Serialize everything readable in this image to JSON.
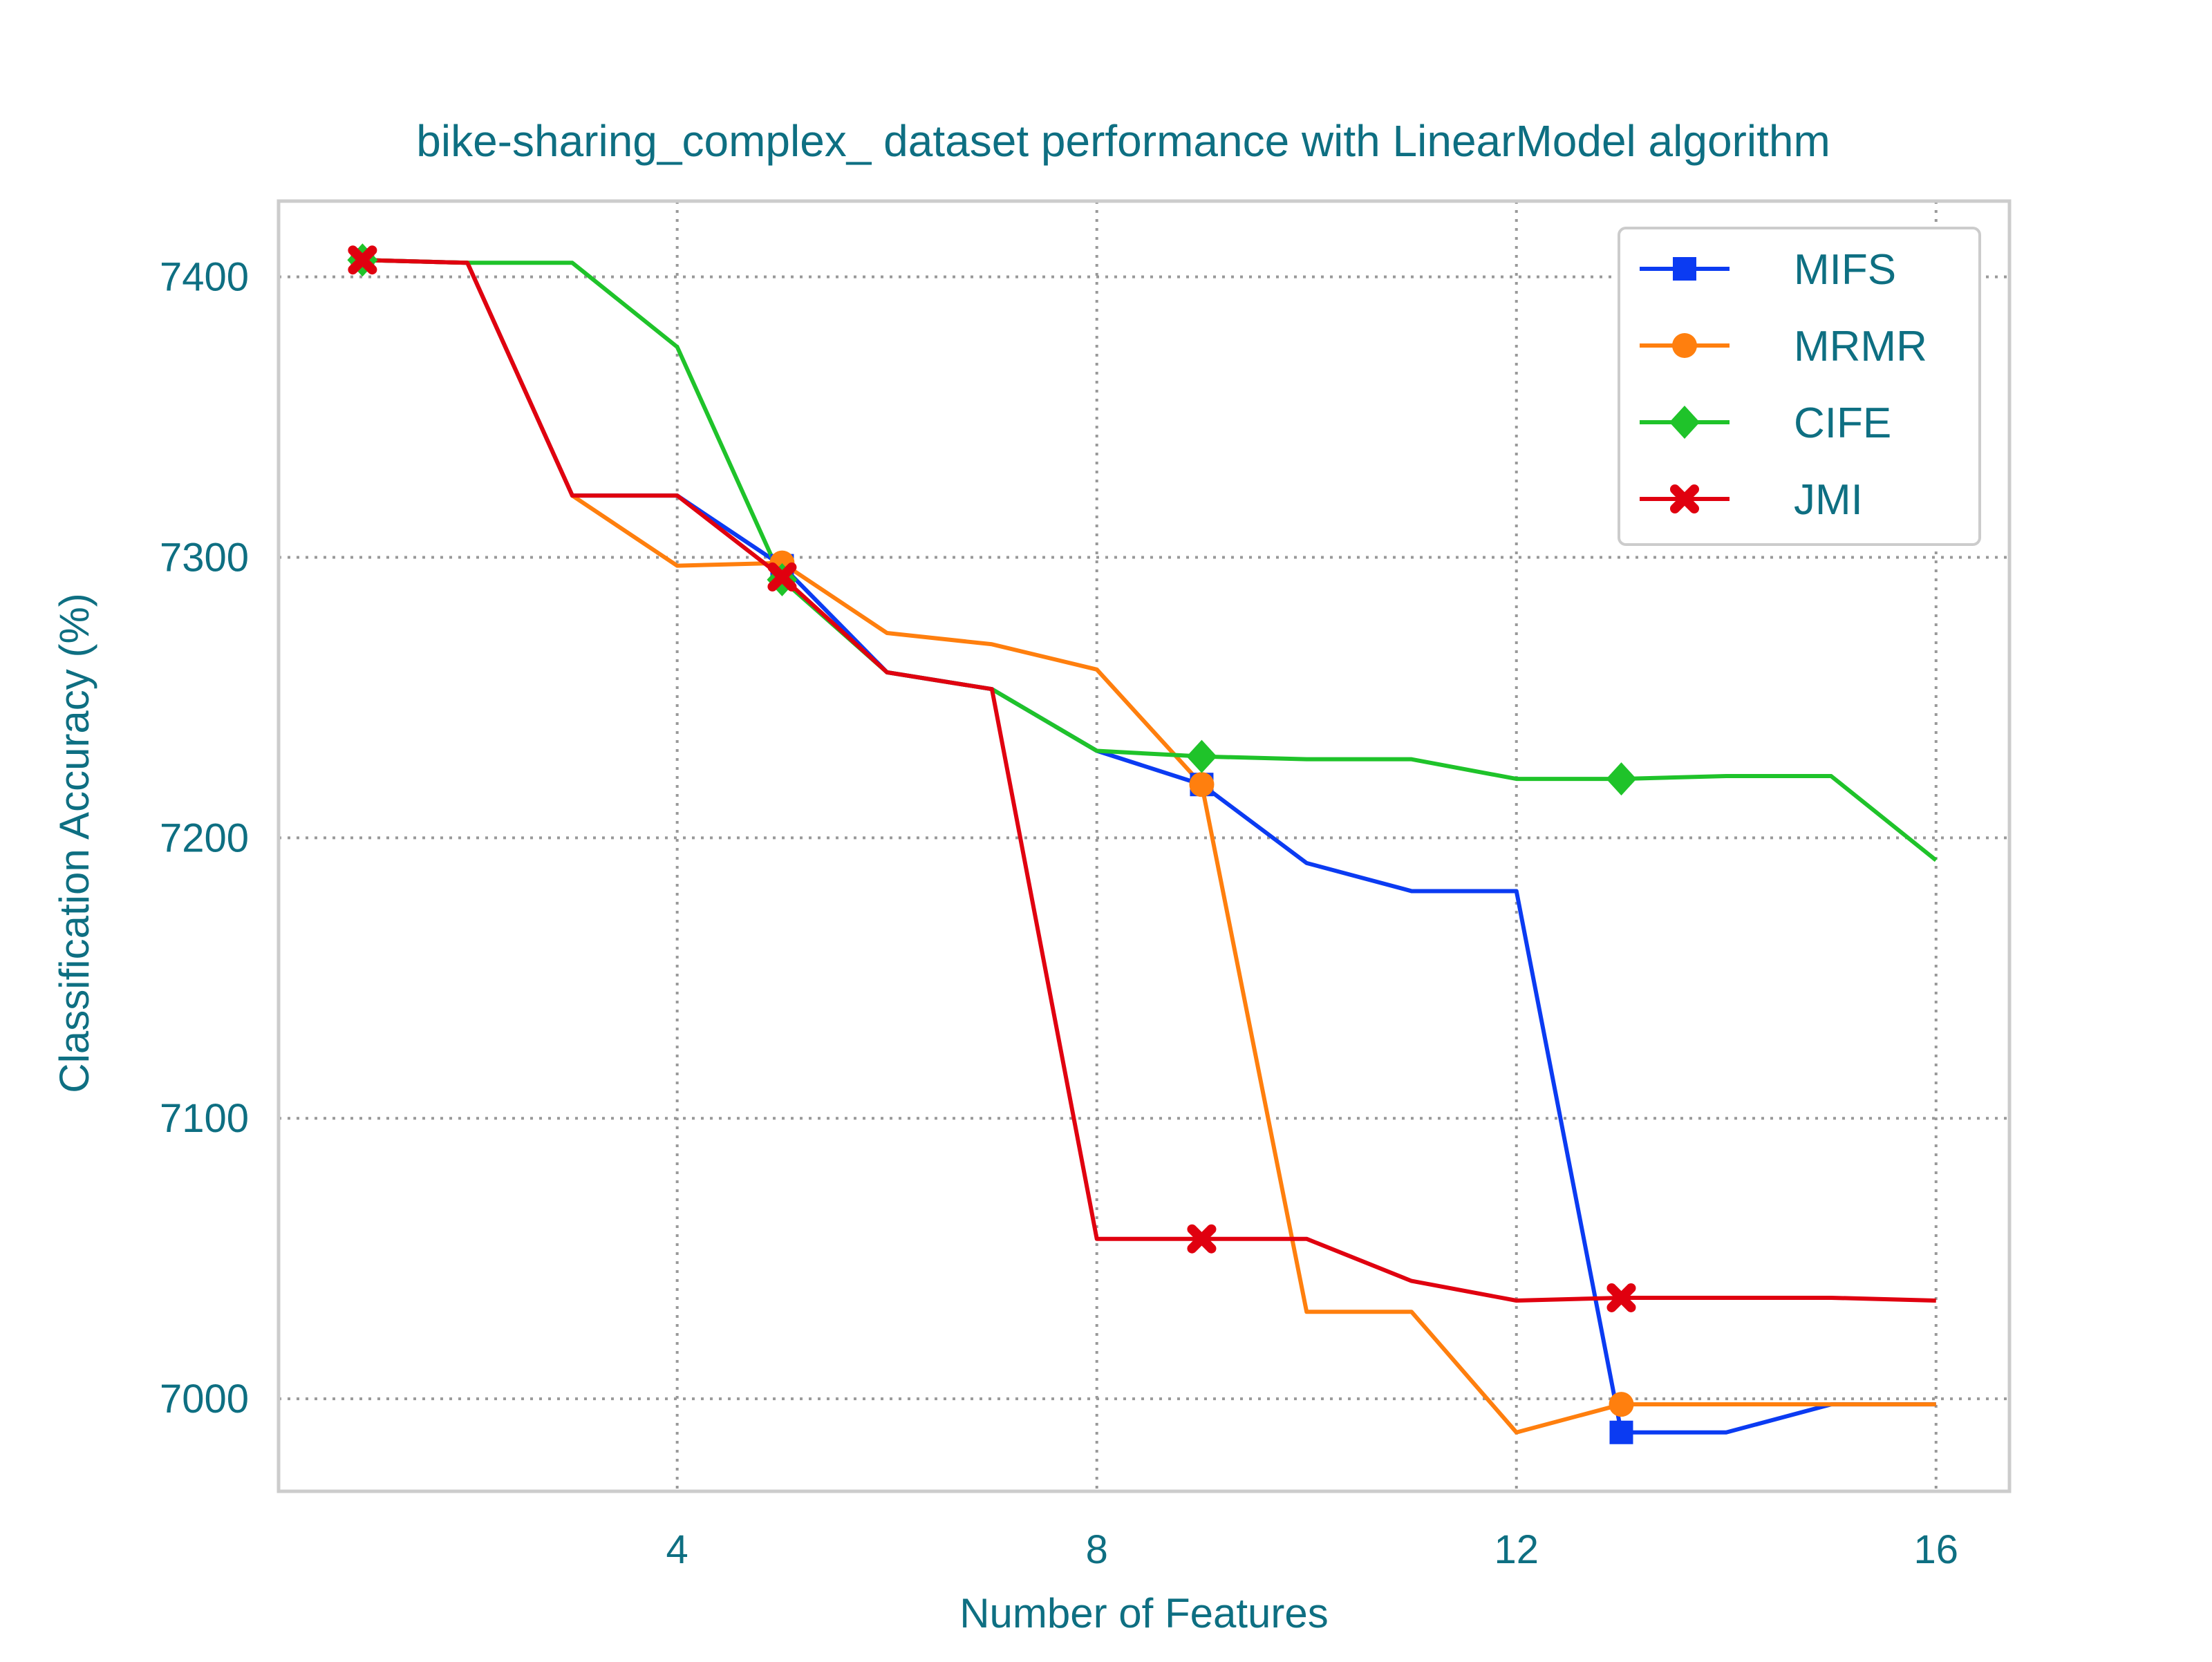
{
  "chart_data": {
    "type": "line",
    "title": "bike-sharing_complex_ dataset performance with LinearModel algorithm",
    "xlabel": "Number of Features",
    "ylabel": "Classification Accuracy (%)",
    "xlim": [
      0.2,
      16.7
    ],
    "ylim": [
      6967,
      7427
    ],
    "xticks": [
      4,
      8,
      12,
      16
    ],
    "yticks": [
      7000,
      7100,
      7200,
      7300,
      7400
    ],
    "grid": true,
    "legend_position": "top-right",
    "x": [
      1,
      2,
      3,
      4,
      5,
      6,
      7,
      8,
      9,
      10,
      11,
      12,
      13,
      14,
      15,
      16
    ],
    "series": [
      {
        "name": "MIFS",
        "color": "#0b3bf2",
        "marker": "square",
        "marker_x": [
          1,
          5,
          9,
          13
        ],
        "values": [
          7406,
          7405,
          7322,
          7322,
          7297,
          7259,
          7253,
          7231,
          7219,
          7191,
          7181,
          7181,
          6988,
          6988,
          6998,
          6998
        ]
      },
      {
        "name": "MRMR",
        "color": "#ff7f0e",
        "marker": "circle",
        "marker_x": [
          1,
          5,
          9,
          13
        ],
        "values": [
          7406,
          7405,
          7322,
          7297,
          7298,
          7273,
          7269,
          7260,
          7219,
          7031,
          7031,
          6988,
          6998,
          6998,
          6998,
          6998
        ]
      },
      {
        "name": "CIFE",
        "color": "#1fc32a",
        "marker": "diamond",
        "marker_x": [
          1,
          5,
          9,
          13
        ],
        "values": [
          7406,
          7405,
          7405,
          7375,
          7292,
          7259,
          7253,
          7231,
          7229,
          7228,
          7228,
          7221,
          7221,
          7222,
          7222,
          7192
        ]
      },
      {
        "name": "JMI",
        "color": "#e0000f",
        "marker": "x",
        "marker_x": [
          1,
          5,
          9,
          13
        ],
        "values": [
          7406,
          7405,
          7322,
          7322,
          7293,
          7259,
          7253,
          7057,
          7057,
          7057,
          7042,
          7035,
          7036,
          7036,
          7036,
          7035
        ]
      }
    ]
  },
  "colors": {
    "text": "#0e6f82",
    "grid": "#999999",
    "frame": "#cccccc"
  }
}
